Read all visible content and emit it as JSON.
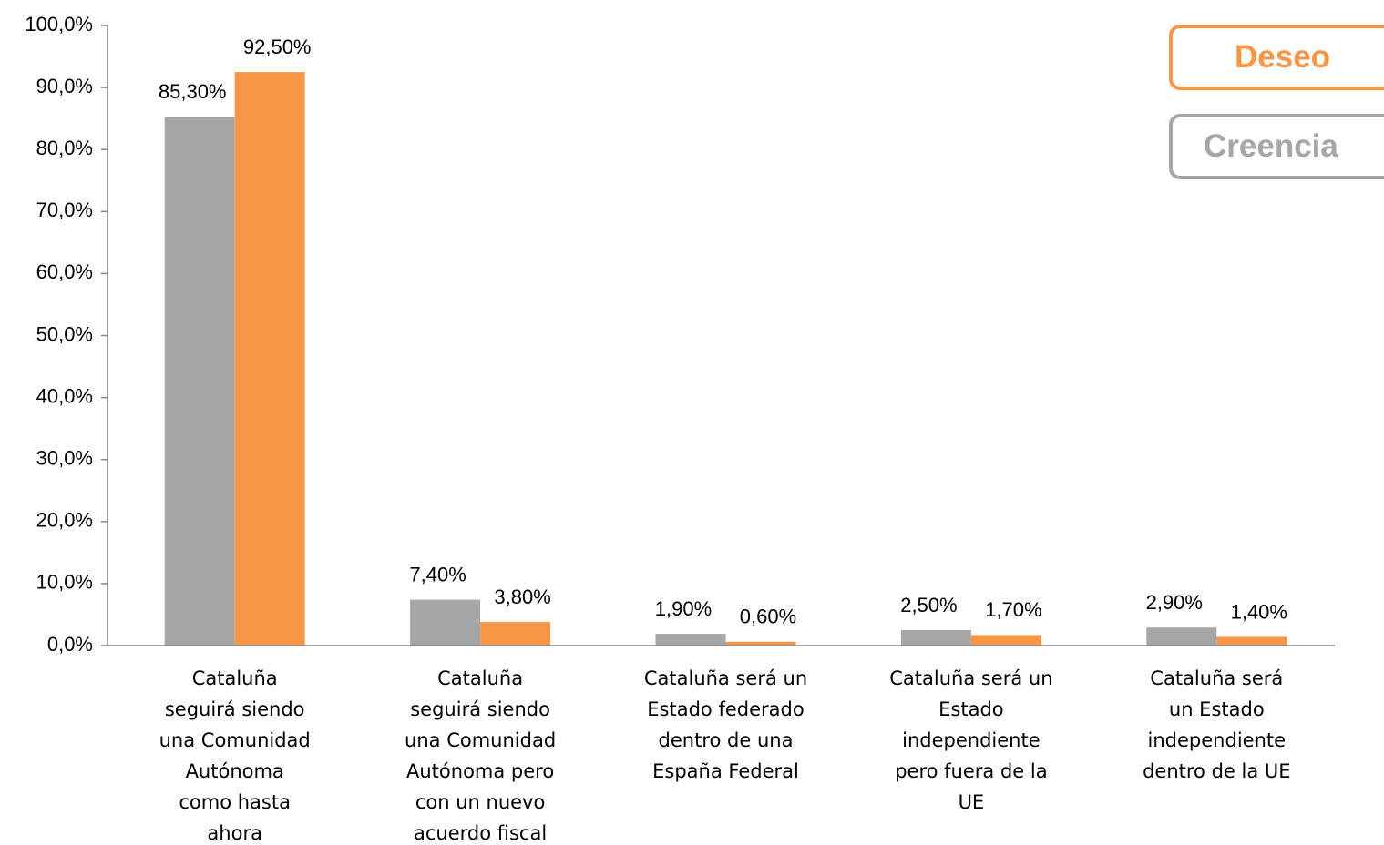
{
  "chart_data": {
    "type": "bar",
    "categories": [
      "Cataluña\nseguirá siendo\nuna Comunidad\nAutónoma\ncomo hasta\nahora",
      "Cataluña\nseguirá siendo\nuna Comunidad\nAutónoma pero\ncon un nuevo\nacuerdo fiscal",
      "Cataluña será un\nEstado federado\ndentro de una\nEspaña Federal",
      "Cataluña será un\nEstado\nindependiente\npero fuera de la\nUE",
      "Cataluña será\nun Estado\nindependiente\ndentro de la UE"
    ],
    "series": [
      {
        "name": "Creencia",
        "color": "#a6a6a6",
        "values": [
          85.3,
          7.4,
          1.9,
          2.5,
          2.9
        ],
        "value_labels": [
          "85,30%",
          "7,40%",
          "1,90%",
          "2,50%",
          "2,90%"
        ]
      },
      {
        "name": "Deseo",
        "color": "#f79646",
        "values": [
          92.5,
          3.8,
          0.6,
          1.7,
          1.4
        ],
        "value_labels": [
          "92,50%",
          "3,80%",
          "0,60%",
          "1,70%",
          "1,40%"
        ]
      }
    ],
    "ylim": [
      0,
      100
    ],
    "yticks": [
      {
        "value": 0,
        "label": "0,0%"
      },
      {
        "value": 10,
        "label": "10,0%"
      },
      {
        "value": 20,
        "label": "20,0%"
      },
      {
        "value": 30,
        "label": "30,0%"
      },
      {
        "value": 40,
        "label": "40,0%"
      },
      {
        "value": 50,
        "label": "50,0%"
      },
      {
        "value": 60,
        "label": "60,0%"
      },
      {
        "value": 70,
        "label": "70,0%"
      },
      {
        "value": 80,
        "label": "80,0%"
      },
      {
        "value": 90,
        "label": "90,0%"
      },
      {
        "value": 100,
        "label": "100,0%"
      }
    ],
    "legend": "top-right",
    "grid": false
  }
}
